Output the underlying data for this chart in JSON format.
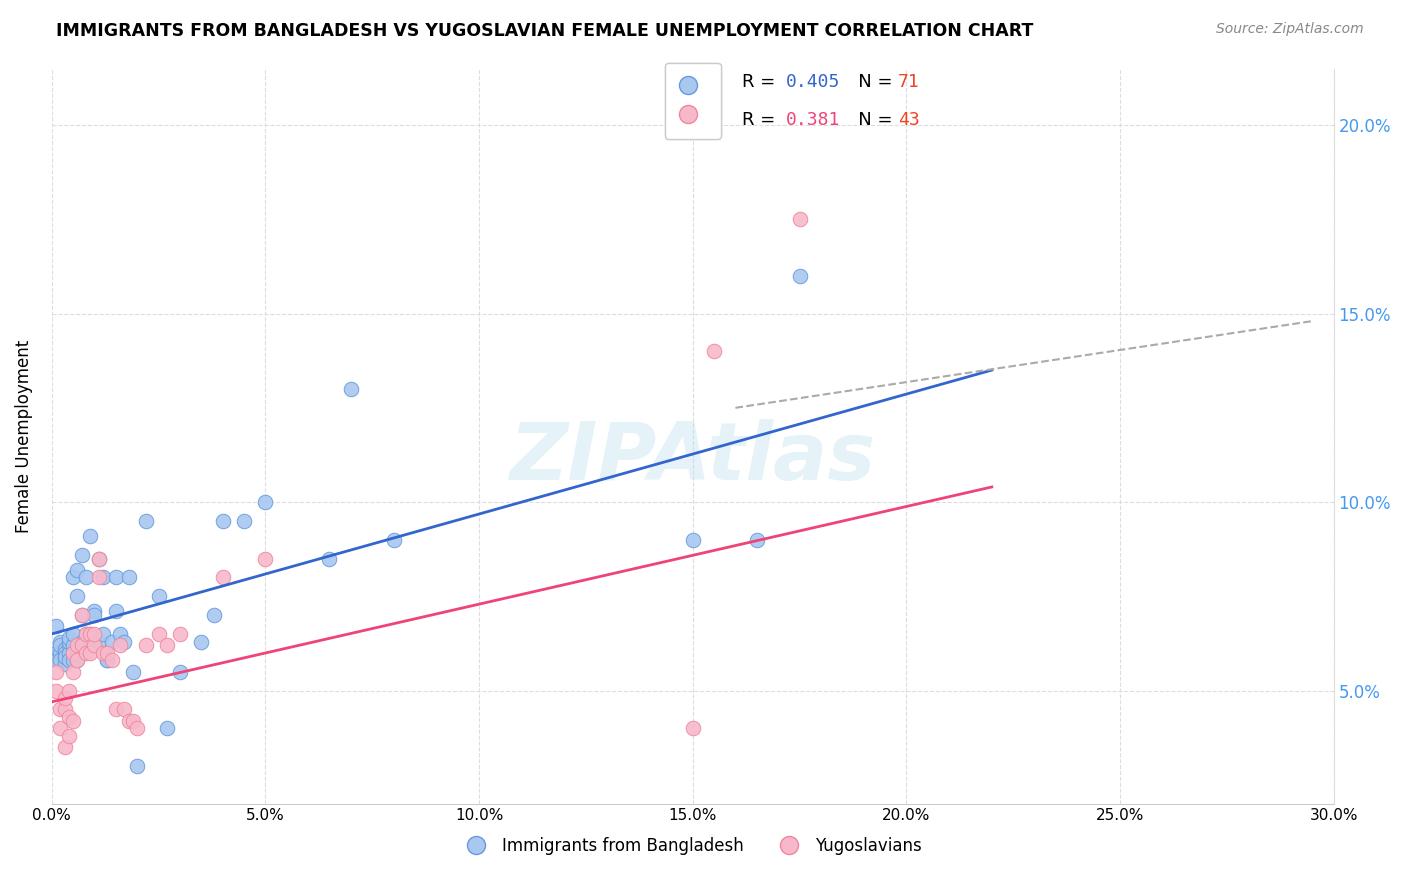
{
  "title": "IMMIGRANTS FROM BANGLADESH VS YUGOSLAVIAN FEMALE UNEMPLOYMENT CORRELATION CHART",
  "source": "Source: ZipAtlas.com",
  "ylabel": "Female Unemployment",
  "xlim": [
    0.0,
    0.3
  ],
  "ylim": [
    0.02,
    0.215
  ],
  "yticks": [
    0.05,
    0.1,
    0.15,
    0.2
  ],
  "xticks": [
    0.0,
    0.05,
    0.1,
    0.15,
    0.2,
    0.25,
    0.3
  ],
  "blue_color": "#A8C8F0",
  "pink_color": "#F8B8CC",
  "blue_edge": "#6699DD",
  "pink_edge": "#EE8899",
  "trend_blue": "#3366CC",
  "trend_pink": "#EE4477",
  "trend_gray": "#AAAAAA",
  "watermark": "ZIPAtlas",
  "watermark_color": "#BBDDEE",
  "blue_points_x": [
    0.001,
    0.001,
    0.001,
    0.002,
    0.002,
    0.002,
    0.002,
    0.003,
    0.003,
    0.003,
    0.003,
    0.003,
    0.004,
    0.004,
    0.004,
    0.004,
    0.004,
    0.005,
    0.005,
    0.005,
    0.005,
    0.005,
    0.006,
    0.006,
    0.006,
    0.006,
    0.006,
    0.006,
    0.007,
    0.007,
    0.007,
    0.007,
    0.008,
    0.008,
    0.008,
    0.008,
    0.009,
    0.009,
    0.009,
    0.01,
    0.01,
    0.01,
    0.011,
    0.011,
    0.012,
    0.012,
    0.013,
    0.013,
    0.014,
    0.015,
    0.015,
    0.016,
    0.017,
    0.018,
    0.019,
    0.02,
    0.022,
    0.025,
    0.027,
    0.03,
    0.035,
    0.038,
    0.04,
    0.045,
    0.05,
    0.065,
    0.07,
    0.08,
    0.15,
    0.165,
    0.175
  ],
  "blue_points_y": [
    0.067,
    0.06,
    0.058,
    0.063,
    0.06,
    0.062,
    0.058,
    0.061,
    0.059,
    0.057,
    0.06,
    0.059,
    0.062,
    0.06,
    0.063,
    0.058,
    0.064,
    0.062,
    0.06,
    0.08,
    0.058,
    0.065,
    0.06,
    0.082,
    0.06,
    0.075,
    0.061,
    0.058,
    0.07,
    0.063,
    0.061,
    0.086,
    0.062,
    0.08,
    0.063,
    0.065,
    0.065,
    0.091,
    0.063,
    0.071,
    0.07,
    0.063,
    0.063,
    0.085,
    0.065,
    0.08,
    0.058,
    0.058,
    0.063,
    0.08,
    0.071,
    0.065,
    0.063,
    0.08,
    0.055,
    0.03,
    0.095,
    0.075,
    0.04,
    0.055,
    0.063,
    0.07,
    0.095,
    0.095,
    0.1,
    0.085,
    0.13,
    0.09,
    0.09,
    0.09,
    0.16
  ],
  "pink_points_x": [
    0.001,
    0.001,
    0.002,
    0.002,
    0.003,
    0.003,
    0.003,
    0.004,
    0.004,
    0.004,
    0.005,
    0.005,
    0.005,
    0.006,
    0.006,
    0.007,
    0.007,
    0.008,
    0.008,
    0.009,
    0.009,
    0.01,
    0.01,
    0.011,
    0.011,
    0.012,
    0.013,
    0.014,
    0.015,
    0.016,
    0.017,
    0.018,
    0.019,
    0.02,
    0.022,
    0.025,
    0.027,
    0.03,
    0.04,
    0.05,
    0.15,
    0.155,
    0.175
  ],
  "pink_points_y": [
    0.055,
    0.05,
    0.04,
    0.045,
    0.045,
    0.035,
    0.048,
    0.05,
    0.043,
    0.038,
    0.06,
    0.055,
    0.042,
    0.062,
    0.058,
    0.07,
    0.062,
    0.06,
    0.065,
    0.06,
    0.065,
    0.062,
    0.065,
    0.08,
    0.085,
    0.06,
    0.06,
    0.058,
    0.045,
    0.062,
    0.045,
    0.042,
    0.042,
    0.04,
    0.062,
    0.065,
    0.062,
    0.065,
    0.08,
    0.085,
    0.04,
    0.14,
    0.175
  ],
  "blue_trend": [
    0.0,
    0.22,
    0.065,
    0.135
  ],
  "pink_trend": [
    0.0,
    0.22,
    0.047,
    0.104
  ],
  "gray_trend": [
    0.16,
    0.295,
    0.125,
    0.148
  ],
  "legend_labels": [
    "Immigrants from Bangladesh",
    "Yugoslavians"
  ],
  "legend_R": [
    "0.405",
    "0.381"
  ],
  "legend_N": [
    "71",
    "43"
  ],
  "r_blue_color": "#3366CC",
  "r_pink_color": "#EE4477",
  "n_blue_color": "#EE4422",
  "n_pink_color": "#EE4422"
}
